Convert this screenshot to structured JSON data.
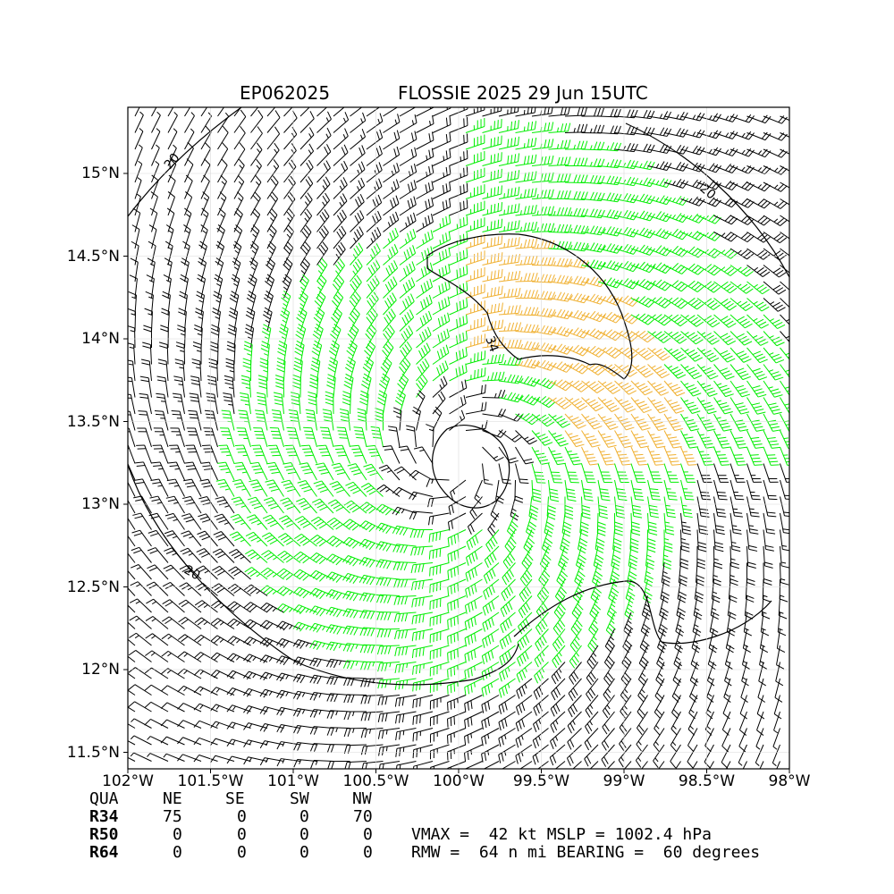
{
  "title": {
    "storm_id": "EP062025",
    "storm_info": "FLOSSIE 2025 29 Jun 15UTC"
  },
  "map": {
    "lon_range": [
      -102,
      -98
    ],
    "lat_range": [
      11.4,
      15.4
    ],
    "x_ticks": [
      "102°W",
      "101.5°W",
      "101°W",
      "100.5°W",
      "100°W",
      "99.5°W",
      "99°W",
      "98.5°W",
      "98°W"
    ],
    "y_ticks": [
      "11.5°N",
      "12°N",
      "12.5°N",
      "13°N",
      "13.5°N",
      "14°N",
      "14.5°N",
      "15°N"
    ],
    "center": {
      "lon": -100.0,
      "lat": 13.28
    },
    "contour_labels": [
      "20",
      "34",
      "20",
      "20"
    ],
    "colors": {
      "below_34kt": "#000000",
      "r34_band": "#00ee00",
      "r50_band": "#f0b030",
      "contour": "#000000"
    }
  },
  "wind_radii_table": {
    "header": [
      "QUA",
      "NE",
      "SE",
      "SW",
      "NW"
    ],
    "rows": [
      {
        "label": "R34",
        "values": [
          "75",
          "0",
          "0",
          "70"
        ]
      },
      {
        "label": "R50",
        "values": [
          "0",
          "0",
          "0",
          "0"
        ]
      },
      {
        "label": "R64",
        "values": [
          "0",
          "0",
          "0",
          "0"
        ]
      }
    ]
  },
  "storm_stats": {
    "line1": "VMAX =  42 kt MSLP = 1002.4 hPa",
    "line2": "RMW =  64 n mi BEARING =  60 degrees"
  }
}
